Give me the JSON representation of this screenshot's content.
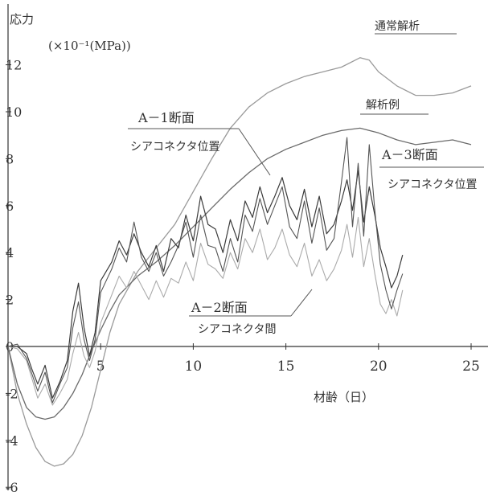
{
  "chart_data": {
    "type": "line",
    "ylabel": "応力",
    "yunit": "(×10⁻¹(MPa))",
    "xlabel": "材齢（日）",
    "xlim": [
      0,
      25
    ],
    "ylim": [
      -6,
      12
    ],
    "xticks": [
      5,
      10,
      15,
      20,
      25
    ],
    "yticks": [
      -6,
      -4,
      -2,
      0,
      2,
      4,
      6,
      8,
      10,
      12
    ],
    "grid": false,
    "labels": {
      "s1": "通常解析",
      "s2": "解析例",
      "s3a": "A－1断面",
      "s3b": "シアコネクタ位置",
      "s4a": "A－2断面",
      "s4b": "シアコネクタ間",
      "s5a": "A－3断面",
      "s5b": "シアコネクタ位置"
    },
    "series": [
      {
        "name": "通常解析",
        "x": [
          0,
          0.5,
          1,
          1.5,
          2,
          2.5,
          3,
          3.5,
          4,
          4.5,
          5,
          5.5,
          6,
          7,
          8,
          9,
          10,
          11,
          12,
          13,
          14,
          15,
          16,
          17,
          18,
          19,
          19.5,
          20,
          21,
          22,
          23,
          24,
          25
        ],
        "y": [
          0,
          -2,
          -3.3,
          -4.3,
          -4.9,
          -5.1,
          -5,
          -4.6,
          -3.8,
          -2.6,
          -1,
          0.6,
          1.8,
          3.2,
          4.2,
          5.2,
          6.6,
          8,
          9.3,
          10.2,
          10.8,
          11.2,
          11.5,
          11.7,
          11.9,
          12.3,
          12.2,
          11.7,
          11.1,
          10.7,
          10.7,
          10.8,
          11.1
        ]
      },
      {
        "name": "解析例",
        "x": [
          0,
          0.5,
          1,
          1.5,
          2,
          2.5,
          3,
          3.5,
          4,
          4.5,
          5,
          5.5,
          6,
          7,
          8,
          9,
          10,
          11,
          12,
          13,
          14,
          15,
          16,
          17,
          18,
          19,
          20,
          21,
          22,
          23,
          24,
          25
        ],
        "y": [
          0,
          -1.6,
          -2.6,
          -3,
          -3.1,
          -3,
          -2.6,
          -2,
          -1.2,
          -0.2,
          0.7,
          1.5,
          2.2,
          3,
          3.6,
          4.3,
          5.1,
          5.9,
          6.7,
          7.4,
          8,
          8.4,
          8.7,
          9,
          9.2,
          9.3,
          9.1,
          8.8,
          8.6,
          8.7,
          8.8,
          8.6
        ]
      },
      {
        "name": "A－1断面 シアコネクタ位置",
        "x": [
          0,
          0.5,
          1,
          1.3,
          1.6,
          2,
          2.4,
          2.8,
          3.2,
          3.5,
          3.8,
          4.1,
          4.4,
          4.7,
          5,
          5.3,
          5.6,
          6,
          6.4,
          6.8,
          7.2,
          7.6,
          8,
          8.4,
          8.8,
          9.2,
          9.6,
          10,
          10.4,
          10.8,
          11.2,
          11.6,
          12,
          12.4,
          12.8,
          13.2,
          13.6,
          14,
          14.4,
          14.8,
          15.2,
          15.6,
          16,
          16.4,
          16.8,
          17.2,
          17.6,
          18,
          18.3,
          18.6,
          18.9,
          19.2,
          19.5,
          19.8,
          20.1,
          20.4,
          20.7,
          21,
          21.3
        ],
        "y": [
          0,
          0,
          -0.3,
          -1,
          -1.6,
          -0.8,
          -2.2,
          -1.5,
          -0.6,
          1.5,
          2.7,
          0.8,
          -0.4,
          0.6,
          2.8,
          3.2,
          3.6,
          4.5,
          3.9,
          4.8,
          4,
          3.4,
          4.3,
          3.2,
          4.6,
          4.2,
          5.6,
          4.5,
          6.4,
          5.2,
          5,
          4,
          5.4,
          4.5,
          6.2,
          5.5,
          6.8,
          5.7,
          6.4,
          7.2,
          6,
          5.4,
          6.7,
          5.1,
          6.4,
          4.8,
          5.2,
          6.2,
          7.1,
          5.8,
          7.5,
          5.3,
          6.8,
          5.6,
          4.2,
          3.4,
          2.5,
          3,
          3.9
        ]
      },
      {
        "name": "A－2断面 シアコネクタ間",
        "x": [
          0,
          0.5,
          1,
          1.3,
          1.6,
          2,
          2.4,
          2.8,
          3.2,
          3.5,
          3.8,
          4.1,
          4.4,
          4.7,
          5,
          5.3,
          5.6,
          6,
          6.4,
          6.8,
          7.2,
          7.6,
          8,
          8.4,
          8.8,
          9.2,
          9.6,
          10,
          10.4,
          10.8,
          11.2,
          11.6,
          12,
          12.4,
          12.8,
          13.2,
          13.6,
          14,
          14.4,
          14.8,
          15.2,
          15.6,
          16,
          16.4,
          16.8,
          17.2,
          17.6,
          18,
          18.3,
          18.6,
          18.9,
          19.2,
          19.5,
          19.8,
          20.1,
          20.4,
          20.7,
          21,
          21.3
        ],
        "y": [
          0,
          -0.1,
          -0.6,
          -1.4,
          -2.2,
          -1.6,
          -2.5,
          -2,
          -1.4,
          -0.3,
          0.6,
          -0.4,
          -0.9,
          -0.2,
          1,
          1.6,
          2.2,
          3,
          2.5,
          3.2,
          2.6,
          2,
          2.8,
          2.1,
          2.9,
          2.7,
          3.6,
          2.8,
          4.4,
          3.5,
          3.3,
          2.9,
          4,
          3.3,
          4.6,
          4,
          5,
          3.7,
          4.2,
          5,
          3.9,
          3.4,
          4.4,
          3,
          3.7,
          2.8,
          3.3,
          4.1,
          5.2,
          3.8,
          5.5,
          3.4,
          4.6,
          3.1,
          1.8,
          1.4,
          2,
          1.3,
          2.4
        ]
      },
      {
        "name": "A－3断面 シアコネクタ位置",
        "x": [
          0,
          0.5,
          1,
          1.3,
          1.6,
          2,
          2.4,
          2.8,
          3.2,
          3.5,
          3.8,
          4.1,
          4.4,
          4.7,
          5,
          5.3,
          5.6,
          6,
          6.4,
          6.8,
          7.2,
          7.6,
          8,
          8.4,
          8.8,
          9.2,
          9.6,
          10,
          10.4,
          10.8,
          11.2,
          11.6,
          12,
          12.4,
          12.8,
          13.2,
          13.6,
          14,
          14.4,
          14.8,
          15.2,
          15.6,
          16,
          16.4,
          16.8,
          17.2,
          17.6,
          18,
          18.3,
          18.6,
          18.9,
          19.2,
          19.5,
          19.8,
          20.1,
          20.4,
          20.7,
          21,
          21.3
        ],
        "y": [
          0,
          0.1,
          -0.5,
          -1.2,
          -1.9,
          -1.1,
          -2.4,
          -1.6,
          -0.9,
          0.8,
          1.9,
          0.3,
          -0.6,
          0.3,
          2.3,
          2.8,
          3.3,
          4.2,
          3.6,
          5.3,
          3.8,
          3.2,
          4,
          3,
          3.6,
          4.3,
          5.3,
          3.8,
          5.6,
          4.3,
          4.2,
          3.2,
          4.6,
          3.6,
          5.6,
          4.9,
          6.3,
          5.2,
          6,
          6.8,
          5.1,
          4.6,
          6.2,
          4.4,
          5.9,
          4.1,
          4.6,
          7,
          8.9,
          5.1,
          7.8,
          4.7,
          8.6,
          5.8,
          3.5,
          2.4,
          1.6,
          2.4,
          3.1
        ]
      }
    ]
  }
}
